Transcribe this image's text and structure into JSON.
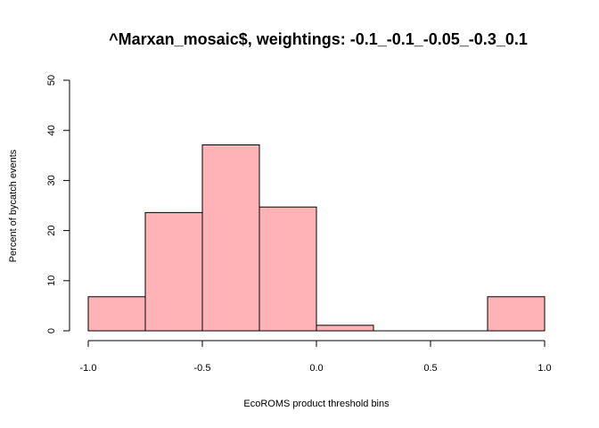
{
  "chart_data": {
    "type": "bar",
    "title": "^Marxan_mosaic$, weightings: -0.1_-0.1_-0.05_-0.3_0.1",
    "xlabel": "EcoROMS product threshold bins",
    "ylabel": "Percent of bycatch events",
    "xlim": [
      -1.0,
      1.0
    ],
    "ylim": [
      0,
      50
    ],
    "x_ticks": [
      "-1.0",
      "-0.5",
      "0.0",
      "0.5",
      "1.0"
    ],
    "y_ticks": [
      "0",
      "10",
      "20",
      "30",
      "40",
      "50"
    ],
    "bins": [
      {
        "from": -1.0,
        "to": -0.75,
        "value": 6.8
      },
      {
        "from": -0.75,
        "to": -0.5,
        "value": 23.6
      },
      {
        "from": -0.5,
        "to": -0.25,
        "value": 37.1
      },
      {
        "from": -0.25,
        "to": 0.0,
        "value": 24.7
      },
      {
        "from": 0.0,
        "to": 0.25,
        "value": 1.1
      },
      {
        "from": 0.25,
        "to": 0.5,
        "value": 0
      },
      {
        "from": 0.5,
        "to": 0.75,
        "value": 0
      },
      {
        "from": 0.75,
        "to": 1.0,
        "value": 6.8
      }
    ],
    "bar_color": "#ffb3b6",
    "bar_edge_color": "#000000",
    "grid": false,
    "legend": "none"
  }
}
